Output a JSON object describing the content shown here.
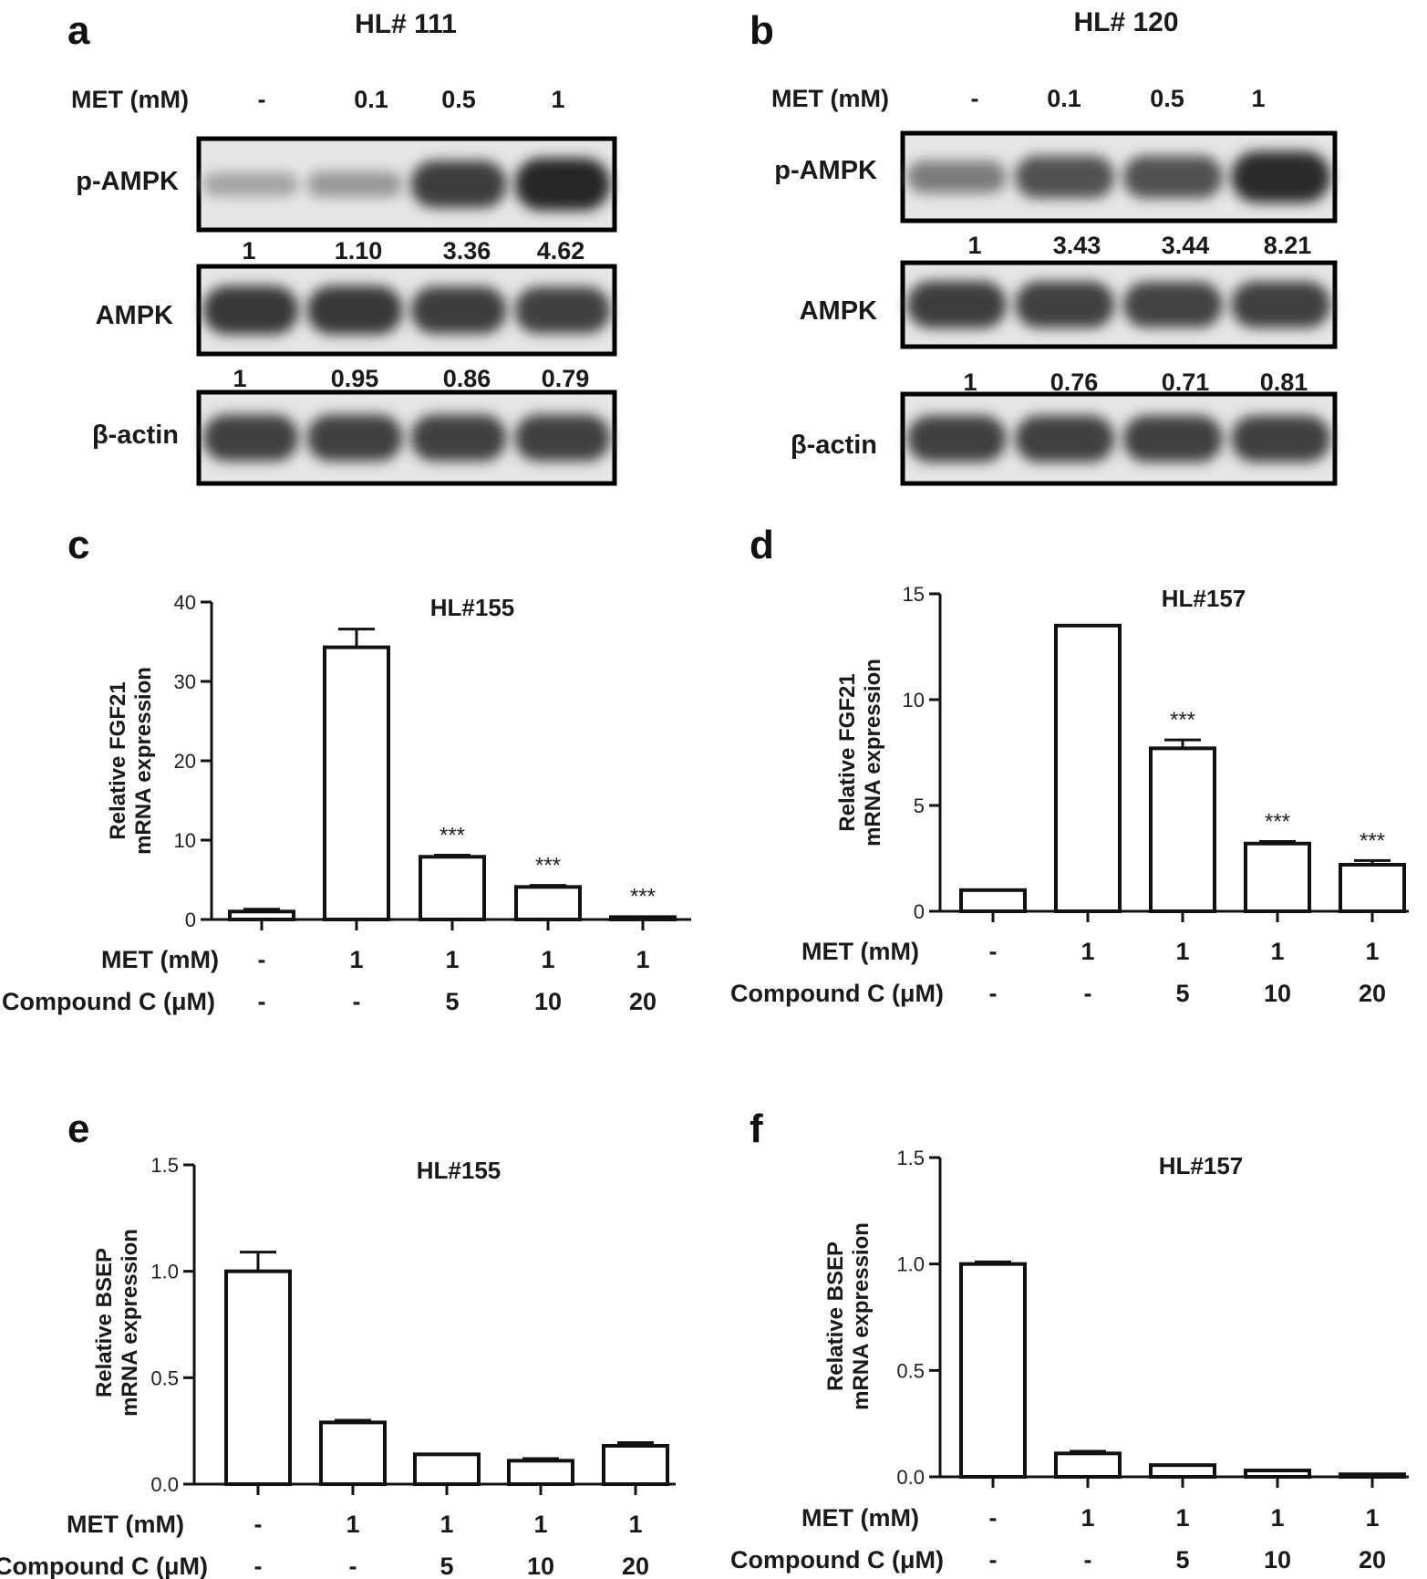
{
  "blots": [
    {
      "panel": "a",
      "title": "HL# 111",
      "dose_label": "MET (mM)",
      "doses": [
        "-",
        "0.1",
        "0.5",
        "1"
      ],
      "rows": [
        {
          "label": "p-AMPK",
          "intensities": [
            0.22,
            0.28,
            0.82,
            0.95
          ]
        },
        {
          "label": "AMPK",
          "intensities": [
            0.85,
            0.85,
            0.82,
            0.8
          ]
        },
        {
          "label": "β-actin",
          "intensities": [
            0.8,
            0.8,
            0.8,
            0.8
          ]
        }
      ],
      "densitometry": [
        [
          "1",
          "1.10",
          "3.36",
          "4.62"
        ],
        [
          "1",
          "0.95",
          "0.86",
          "0.79"
        ]
      ]
    },
    {
      "panel": "b",
      "title": "HL# 120",
      "dose_label": "MET (mM)",
      "doses": [
        "-",
        "0.1",
        "0.5",
        "1"
      ],
      "rows": [
        {
          "label": "p-AMPK",
          "intensities": [
            0.45,
            0.7,
            0.7,
            0.92
          ]
        },
        {
          "label": "AMPK",
          "intensities": [
            0.82,
            0.8,
            0.78,
            0.8
          ]
        },
        {
          "label": "β-actin",
          "intensities": [
            0.8,
            0.8,
            0.8,
            0.8
          ]
        }
      ],
      "densitometry": [
        [
          "1",
          "3.43",
          "3.44",
          "8.21"
        ],
        [
          "1",
          "0.76",
          "0.71",
          "0.81"
        ]
      ]
    }
  ],
  "treatment_labels": {
    "met": "MET (mM)",
    "cc": "Compound C (μM)"
  },
  "chart_data": [
    {
      "panel": "c",
      "type": "bar",
      "title": "HL#155",
      "ylabel": "Relative FGF21 mRNA expression",
      "ylabel_lines": [
        "Relative FGF21",
        "mRNA expression"
      ],
      "xlabel": "",
      "ylim": [
        0,
        40
      ],
      "yticks": [
        0,
        10,
        20,
        30,
        40
      ],
      "categories": [
        "1",
        "2",
        "3",
        "4",
        "5"
      ],
      "values": [
        1.0,
        34.3,
        7.9,
        4.1,
        0.3
      ],
      "errors": [
        0.3,
        2.3,
        0.2,
        0.2,
        0.1
      ],
      "significance": [
        "",
        "",
        "***",
        "***",
        "***"
      ],
      "met": [
        "-",
        "1",
        "1",
        "1",
        "1"
      ],
      "compound_c": [
        "-",
        "-",
        "5",
        "10",
        "20"
      ]
    },
    {
      "panel": "d",
      "type": "bar",
      "title": "HL#157",
      "ylabel": "Relative FGF21 mRNA expression",
      "ylabel_lines": [
        "Relative FGF21",
        "mRNA expression"
      ],
      "xlabel": "",
      "ylim": [
        0,
        15
      ],
      "yticks": [
        0,
        5,
        10,
        15
      ],
      "categories": [
        "1",
        "2",
        "3",
        "4",
        "5"
      ],
      "values": [
        1.0,
        13.5,
        7.7,
        3.2,
        2.2
      ],
      "errors": [
        0.05,
        0.05,
        0.4,
        0.1,
        0.2
      ],
      "significance": [
        "",
        "",
        "***",
        "***",
        "***"
      ],
      "met": [
        "-",
        "1",
        "1",
        "1",
        "1"
      ],
      "compound_c": [
        "-",
        "-",
        "5",
        "10",
        "20"
      ]
    },
    {
      "panel": "e",
      "type": "bar",
      "title": "HL#155",
      "ylabel": "Relative BSEP mRNA expression",
      "ylabel_lines": [
        "Relative BSEP",
        "mRNA expression"
      ],
      "xlabel": "",
      "ylim": [
        0,
        1.5
      ],
      "yticks": [
        0.0,
        0.5,
        1.0,
        1.5
      ],
      "categories": [
        "1",
        "2",
        "3",
        "4",
        "5"
      ],
      "values": [
        1.0,
        0.29,
        0.14,
        0.11,
        0.18
      ],
      "errors": [
        0.09,
        0.01,
        0.005,
        0.01,
        0.015
      ],
      "significance": [
        "",
        "",
        "",
        "",
        ""
      ],
      "met": [
        "-",
        "1",
        "1",
        "1",
        "1"
      ],
      "compound_c": [
        "-",
        "-",
        "5",
        "10",
        "20"
      ]
    },
    {
      "panel": "f",
      "type": "bar",
      "title": "HL#157",
      "ylabel": "Relative BSEP mRNA expression",
      "ylabel_lines": [
        "Relative BSEP",
        "mRNA expression"
      ],
      "xlabel": "",
      "ylim": [
        0,
        1.5
      ],
      "yticks": [
        0.0,
        0.5,
        1.0,
        1.5
      ],
      "categories": [
        "1",
        "2",
        "3",
        "4",
        "5"
      ],
      "values": [
        1.0,
        0.11,
        0.055,
        0.03,
        0.012
      ],
      "errors": [
        0.01,
        0.01,
        0.005,
        0.005,
        0.005
      ],
      "significance": [
        "",
        "",
        "",
        "",
        ""
      ],
      "met": [
        "-",
        "1",
        "1",
        "1",
        "1"
      ],
      "compound_c": [
        "-",
        "-",
        "5",
        "10",
        "20"
      ]
    }
  ]
}
